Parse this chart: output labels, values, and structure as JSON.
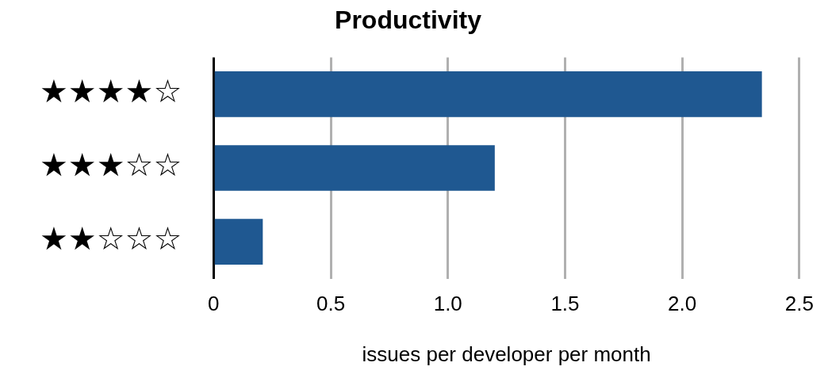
{
  "chart_data": {
    "type": "bar",
    "orientation": "horizontal",
    "title": "Productivity",
    "xlabel": "issues per developer per month",
    "categories": [
      "★★★★☆",
      "★★★☆☆",
      "★★☆☆☆"
    ],
    "values": [
      2.34,
      1.2,
      0.21
    ],
    "color": "#1f5891",
    "xlim": [
      0,
      2.5
    ],
    "xticks": [
      0,
      0.5,
      {
        "value": 1,
        "label": "1.0"
      },
      {
        "value": 1.5,
        "label": "1.5"
      },
      {
        "value": 2,
        "label": "2.0"
      },
      {
        "value": 2.5,
        "label": "2.5"
      }
    ],
    "grid": "x",
    "legend": false
  }
}
